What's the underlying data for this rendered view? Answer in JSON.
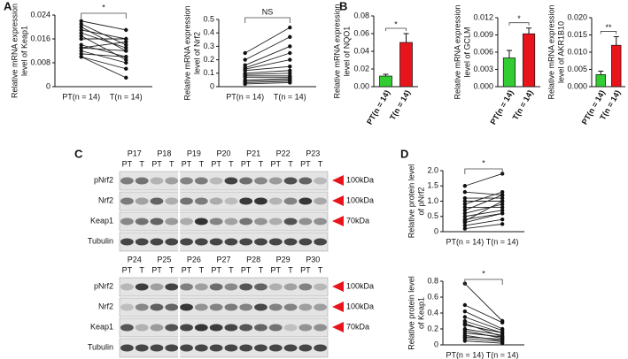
{
  "panel_labels": [
    "A",
    "B",
    "C",
    "D"
  ],
  "chart_data": [
    {
      "type": "paired",
      "ylabel": [
        "Relative mRNA expression",
        "level of  Keap1"
      ],
      "categories": [
        "PT(n = 14)",
        "T(n = 14)"
      ],
      "significance": "*",
      "ylim": [
        0,
        0.024
      ],
      "yticks": [
        0,
        0.008,
        0.016,
        0.024
      ],
      "values": [
        [
          0.022,
          0.019
        ],
        [
          0.021,
          0.014
        ],
        [
          0.02,
          0.012
        ],
        [
          0.019,
          0.016
        ],
        [
          0.018,
          0.013
        ],
        [
          0.017,
          0.009
        ],
        [
          0.016,
          0.016
        ],
        [
          0.014,
          0.01
        ],
        [
          0.013,
          0.015
        ],
        [
          0.013,
          0.012
        ],
        [
          0.012,
          0.008
        ],
        [
          0.011,
          0.01
        ],
        [
          0.01,
          0.006
        ],
        [
          0.01,
          0.003
        ]
      ]
    },
    {
      "type": "paired",
      "ylabel": [
        "Relative mRNA expression",
        "level of  Nrf2"
      ],
      "categories": [
        "PT(n = 14)",
        "T(n = 14)"
      ],
      "significance": "NS",
      "ylim": [
        0,
        0.5
      ],
      "yticks": [
        0,
        0.1,
        0.2,
        0.3,
        0.4,
        0.5
      ],
      "values": [
        [
          0.25,
          0.44
        ],
        [
          0.2,
          0.37
        ],
        [
          0.16,
          0.3
        ],
        [
          0.14,
          0.25
        ],
        [
          0.13,
          0.2
        ],
        [
          0.12,
          0.15
        ],
        [
          0.1,
          0.12
        ],
        [
          0.09,
          0.1
        ],
        [
          0.08,
          0.08
        ],
        [
          0.07,
          0.07
        ],
        [
          0.05,
          0.06
        ],
        [
          0.04,
          0.05
        ],
        [
          0.03,
          0.04
        ],
        [
          0.02,
          0.03
        ]
      ]
    },
    {
      "type": "bar",
      "ylabel": [
        "Relative mRNA expression",
        "level of  NQO1"
      ],
      "categories": [
        "PT(n = 14)",
        "T(n = 14)"
      ],
      "significance": "*",
      "ylim": [
        0,
        0.08
      ],
      "yticks": [
        {
          "value": 0,
          "label": "0.00"
        },
        0.02,
        0.04,
        0.06,
        0.08
      ],
      "values": [
        0.012,
        0.05
      ],
      "errors": [
        0.002,
        0.01
      ],
      "colors": [
        "#33cc33",
        "#e8141b"
      ]
    },
    {
      "type": "bar",
      "ylabel": [
        "Relative mRNA expression",
        "level of  GCLM"
      ],
      "categories": [
        "PT(n = 14)",
        "T(n = 14)"
      ],
      "significance": "*",
      "ylim": [
        0,
        0.012
      ],
      "yticks": [
        {
          "value": 0,
          "label": "0.000"
        },
        0.003,
        0.006,
        0.009,
        0.012
      ],
      "values": [
        0.005,
        0.0092
      ],
      "errors": [
        0.0013,
        0.001
      ],
      "colors": [
        "#33cc33",
        "#e8141b"
      ]
    },
    {
      "type": "bar",
      "ylabel": [
        "Relative mRNA expression",
        "level of  AKR1B10"
      ],
      "categories": [
        "PT(n = 14)",
        "T(n = 14)"
      ],
      "significance": "**",
      "ylim": [
        0,
        0.02
      ],
      "yticks": [
        {
          "value": 0,
          "label": "0.000"
        },
        0.005,
        {
          "value": 0.01,
          "label": "0.010"
        },
        0.015,
        {
          "value": 0.02,
          "label": "0.020"
        }
      ],
      "values": [
        0.0035,
        0.012
      ],
      "errors": [
        0.001,
        0.0025
      ],
      "colors": [
        "#33cc33",
        "#e8141b"
      ]
    },
    {
      "type": "paired",
      "ylabel": [
        "Relative protein level",
        "of pNrf2"
      ],
      "categories": [
        "PT(n = 14)",
        "T(n = 14)"
      ],
      "significance": "*",
      "ylim": [
        0,
        2
      ],
      "yticks": [
        0,
        0.5,
        {
          "value": 1,
          "label": "1.0"
        },
        1.5,
        {
          "value": 2,
          "label": "2.0"
        }
      ],
      "values": [
        [
          1.5,
          1.9
        ],
        [
          1.3,
          1.2
        ],
        [
          1.1,
          1.1
        ],
        [
          1.0,
          1.0
        ],
        [
          0.9,
          1.3
        ],
        [
          0.8,
          0.8
        ],
        [
          0.7,
          1.2
        ],
        [
          0.6,
          0.9
        ],
        [
          0.5,
          0.7
        ],
        [
          0.4,
          0.6
        ],
        [
          0.35,
          1.0
        ],
        [
          0.3,
          0.6
        ],
        [
          0.2,
          0.4
        ],
        [
          0.1,
          0.25
        ]
      ]
    },
    {
      "type": "paired",
      "ylabel": [
        "Relative  protein level",
        "of Keap1"
      ],
      "categories": [
        "PT(n = 14)",
        "T(n = 14)"
      ],
      "significance": "*",
      "ylim": [
        0,
        0.8
      ],
      "yticks": [
        0,
        0.2,
        0.4,
        0.6,
        0.8
      ],
      "values": [
        [
          0.77,
          0.3
        ],
        [
          0.5,
          0.28
        ],
        [
          0.42,
          0.2
        ],
        [
          0.35,
          0.18
        ],
        [
          0.3,
          0.15
        ],
        [
          0.27,
          0.1
        ],
        [
          0.25,
          0.15
        ],
        [
          0.2,
          0.12
        ],
        [
          0.18,
          0.08
        ],
        [
          0.15,
          0.1
        ],
        [
          0.12,
          0.05
        ],
        [
          0.1,
          0.07
        ],
        [
          0.08,
          0.04
        ],
        [
          0.05,
          0.02
        ]
      ]
    }
  ],
  "blots": {
    "lanes": [
      "PT",
      "T"
    ],
    "rows": [
      "pNrf2",
      "Nrf2",
      "Keap1",
      "Tubulin"
    ],
    "markers": [
      "100kDa",
      "100kDa",
      "70kDa"
    ],
    "groups": [
      [
        "P17",
        "P18",
        "P19",
        "P20",
        "P21",
        "P22",
        "P23"
      ],
      [
        "P24",
        "P25",
        "P26",
        "P27",
        "P28",
        "P29",
        "P30"
      ]
    ]
  }
}
